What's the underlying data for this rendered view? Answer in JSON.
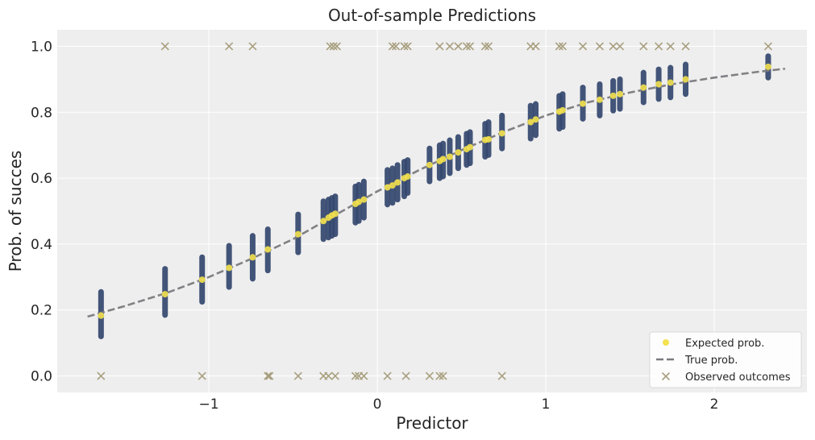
{
  "chart_data": {
    "type": "scatter",
    "title": "Out-of-sample Predictions",
    "xlabel": "Predictor",
    "ylabel": "Prob. of succes",
    "xlim": [
      -1.9,
      2.55
    ],
    "ylim": [
      -0.05,
      1.05
    ],
    "xticks": [
      -1,
      0,
      1,
      2
    ],
    "xtick_labels": [
      "−1",
      "0",
      "1",
      "2"
    ],
    "yticks": [
      0.0,
      0.2,
      0.4,
      0.6,
      0.8,
      1.0
    ],
    "ytick_labels": [
      "0.0",
      "0.2",
      "0.4",
      "0.6",
      "0.8",
      "1.0"
    ],
    "grid": true,
    "legend_position": "lower-right",
    "colors": {
      "background": "#eeeeee",
      "grid": "#ffffff",
      "interval": "#34476f",
      "interval_dark": "#0f2a57",
      "expected": "#f3e14e",
      "true_line": "#7a7a7e",
      "observed": "#a89f7f"
    },
    "series": [
      {
        "name": "Expected prob.",
        "kind": "points_with_intervals",
        "points": [
          {
            "x": -1.64,
            "y": 0.183,
            "lo": 0.12,
            "hi": 0.255
          },
          {
            "x": -1.26,
            "y": 0.248,
            "lo": 0.185,
            "hi": 0.325
          },
          {
            "x": -1.04,
            "y": 0.292,
            "lo": 0.225,
            "hi": 0.36
          },
          {
            "x": -0.88,
            "y": 0.328,
            "lo": 0.27,
            "hi": 0.395
          },
          {
            "x": -0.74,
            "y": 0.36,
            "lo": 0.295,
            "hi": 0.425
          },
          {
            "x": -0.65,
            "y": 0.384,
            "lo": 0.32,
            "hi": 0.445
          },
          {
            "x": -0.47,
            "y": 0.43,
            "lo": 0.375,
            "hi": 0.49
          },
          {
            "x": -0.32,
            "y": 0.47,
            "lo": 0.415,
            "hi": 0.53
          },
          {
            "x": -0.29,
            "y": 0.48,
            "lo": 0.42,
            "hi": 0.535
          },
          {
            "x": -0.27,
            "y": 0.487,
            "lo": 0.425,
            "hi": 0.54
          },
          {
            "x": -0.25,
            "y": 0.492,
            "lo": 0.43,
            "hi": 0.545
          },
          {
            "x": -0.13,
            "y": 0.522,
            "lo": 0.465,
            "hi": 0.575
          },
          {
            "x": -0.11,
            "y": 0.528,
            "lo": 0.47,
            "hi": 0.58
          },
          {
            "x": -0.08,
            "y": 0.535,
            "lo": 0.48,
            "hi": 0.59
          },
          {
            "x": 0.06,
            "y": 0.572,
            "lo": 0.52,
            "hi": 0.625
          },
          {
            "x": 0.09,
            "y": 0.578,
            "lo": 0.525,
            "hi": 0.63
          },
          {
            "x": 0.12,
            "y": 0.587,
            "lo": 0.535,
            "hi": 0.64
          },
          {
            "x": 0.16,
            "y": 0.6,
            "lo": 0.545,
            "hi": 0.65
          },
          {
            "x": 0.18,
            "y": 0.605,
            "lo": 0.555,
            "hi": 0.655
          },
          {
            "x": 0.31,
            "y": 0.64,
            "lo": 0.59,
            "hi": 0.69
          },
          {
            "x": 0.37,
            "y": 0.652,
            "lo": 0.6,
            "hi": 0.7
          },
          {
            "x": 0.39,
            "y": 0.658,
            "lo": 0.605,
            "hi": 0.705
          },
          {
            "x": 0.43,
            "y": 0.665,
            "lo": 0.615,
            "hi": 0.715
          },
          {
            "x": 0.48,
            "y": 0.678,
            "lo": 0.63,
            "hi": 0.725
          },
          {
            "x": 0.53,
            "y": 0.688,
            "lo": 0.64,
            "hi": 0.735
          },
          {
            "x": 0.55,
            "y": 0.694,
            "lo": 0.645,
            "hi": 0.74
          },
          {
            "x": 0.64,
            "y": 0.716,
            "lo": 0.665,
            "hi": 0.765
          },
          {
            "x": 0.66,
            "y": 0.718,
            "lo": 0.67,
            "hi": 0.77
          },
          {
            "x": 0.74,
            "y": 0.736,
            "lo": 0.69,
            "hi": 0.79
          },
          {
            "x": 0.91,
            "y": 0.77,
            "lo": 0.72,
            "hi": 0.82
          },
          {
            "x": 0.94,
            "y": 0.778,
            "lo": 0.73,
            "hi": 0.825
          },
          {
            "x": 1.08,
            "y": 0.802,
            "lo": 0.75,
            "hi": 0.85
          },
          {
            "x": 1.1,
            "y": 0.806,
            "lo": 0.755,
            "hi": 0.855
          },
          {
            "x": 1.22,
            "y": 0.826,
            "lo": 0.78,
            "hi": 0.875
          },
          {
            "x": 1.32,
            "y": 0.838,
            "lo": 0.79,
            "hi": 0.885
          },
          {
            "x": 1.4,
            "y": 0.85,
            "lo": 0.805,
            "hi": 0.895
          },
          {
            "x": 1.44,
            "y": 0.855,
            "lo": 0.81,
            "hi": 0.9
          },
          {
            "x": 1.58,
            "y": 0.875,
            "lo": 0.83,
            "hi": 0.92
          },
          {
            "x": 1.67,
            "y": 0.885,
            "lo": 0.84,
            "hi": 0.93
          },
          {
            "x": 1.74,
            "y": 0.89,
            "lo": 0.845,
            "hi": 0.935
          },
          {
            "x": 1.83,
            "y": 0.9,
            "lo": 0.855,
            "hi": 0.945
          },
          {
            "x": 2.32,
            "y": 0.938,
            "lo": 0.905,
            "hi": 0.97
          }
        ]
      },
      {
        "name": "True prob.",
        "kind": "dashed_line",
        "x": [
          -1.72,
          -1.5,
          -1.25,
          -1.0,
          -0.75,
          -0.5,
          -0.25,
          0.0,
          0.25,
          0.5,
          0.75,
          1.0,
          1.25,
          1.5,
          1.75,
          2.0,
          2.25,
          2.42
        ],
        "y": [
          0.18,
          0.212,
          0.252,
          0.3,
          0.355,
          0.415,
          0.488,
          0.56,
          0.625,
          0.685,
          0.74,
          0.79,
          0.83,
          0.86,
          0.885,
          0.905,
          0.922,
          0.932
        ]
      },
      {
        "name": "Observed outcomes",
        "kind": "x_markers",
        "points": [
          {
            "x": -1.64,
            "y": 0
          },
          {
            "x": -1.26,
            "y": 1
          },
          {
            "x": -1.04,
            "y": 0
          },
          {
            "x": -0.88,
            "y": 1
          },
          {
            "x": -0.74,
            "y": 1
          },
          {
            "x": -0.65,
            "y": 0
          },
          {
            "x": -0.64,
            "y": 0
          },
          {
            "x": -0.47,
            "y": 0
          },
          {
            "x": -0.32,
            "y": 0
          },
          {
            "x": -0.29,
            "y": 0
          },
          {
            "x": -0.28,
            "y": 1
          },
          {
            "x": -0.26,
            "y": 1
          },
          {
            "x": -0.25,
            "y": 0
          },
          {
            "x": -0.24,
            "y": 1
          },
          {
            "x": -0.13,
            "y": 0
          },
          {
            "x": -0.11,
            "y": 0
          },
          {
            "x": -0.08,
            "y": 0
          },
          {
            "x": 0.06,
            "y": 0
          },
          {
            "x": 0.09,
            "y": 1
          },
          {
            "x": 0.11,
            "y": 1
          },
          {
            "x": 0.16,
            "y": 1
          },
          {
            "x": 0.17,
            "y": 0
          },
          {
            "x": 0.18,
            "y": 1
          },
          {
            "x": 0.31,
            "y": 0
          },
          {
            "x": 0.37,
            "y": 1
          },
          {
            "x": 0.37,
            "y": 0
          },
          {
            "x": 0.39,
            "y": 0
          },
          {
            "x": 0.43,
            "y": 1
          },
          {
            "x": 0.48,
            "y": 1
          },
          {
            "x": 0.53,
            "y": 1
          },
          {
            "x": 0.55,
            "y": 1
          },
          {
            "x": 0.64,
            "y": 1
          },
          {
            "x": 0.66,
            "y": 1
          },
          {
            "x": 0.74,
            "y": 0
          },
          {
            "x": 0.91,
            "y": 1
          },
          {
            "x": 0.94,
            "y": 1
          },
          {
            "x": 1.08,
            "y": 1
          },
          {
            "x": 1.1,
            "y": 1
          },
          {
            "x": 1.22,
            "y": 1
          },
          {
            "x": 1.32,
            "y": 1
          },
          {
            "x": 1.4,
            "y": 1
          },
          {
            "x": 1.44,
            "y": 1
          },
          {
            "x": 1.58,
            "y": 1
          },
          {
            "x": 1.67,
            "y": 1
          },
          {
            "x": 1.74,
            "y": 1
          },
          {
            "x": 1.83,
            "y": 1
          },
          {
            "x": 2.32,
            "y": 1
          }
        ]
      }
    ]
  }
}
